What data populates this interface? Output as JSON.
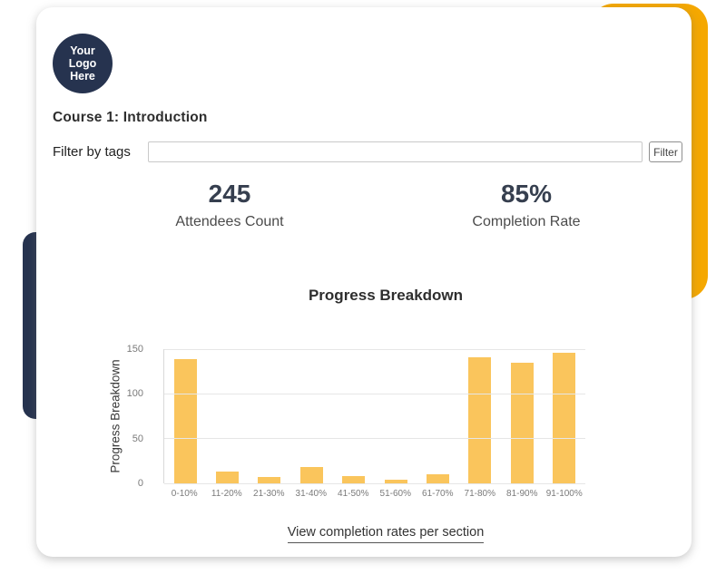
{
  "colors": {
    "navy": "#26334F",
    "amber": "#F5A801",
    "bar": "#FAC55C"
  },
  "logo": {
    "lines": [
      "Your",
      "Logo",
      "Here"
    ]
  },
  "page": {
    "course_title": "Course 1: Introduction"
  },
  "filter": {
    "label": "Filter by tags",
    "input_value": "",
    "button_label": "Filter"
  },
  "stats": [
    {
      "value": "245",
      "label": "Attendees Count"
    },
    {
      "value": "85%",
      "label": "Completion Rate"
    }
  ],
  "chart_data": {
    "type": "bar",
    "title": "Progress Breakdown",
    "xlabel": "",
    "ylabel": "Progress Breakdown",
    "categories": [
      "0-10%",
      "11-20%",
      "21-30%",
      "31-40%",
      "41-50%",
      "51-60%",
      "61-70%",
      "71-80%",
      "81-90%",
      "91-100%"
    ],
    "values": [
      139,
      13,
      7,
      18,
      8,
      4,
      10,
      141,
      135,
      146
    ],
    "yticks": [
      0,
      50,
      100,
      150
    ],
    "ylim": [
      0,
      150
    ],
    "grid": true,
    "legend": false,
    "bar_color": "#FAC55C"
  },
  "footer": {
    "link_label": "View completion rates per section"
  }
}
